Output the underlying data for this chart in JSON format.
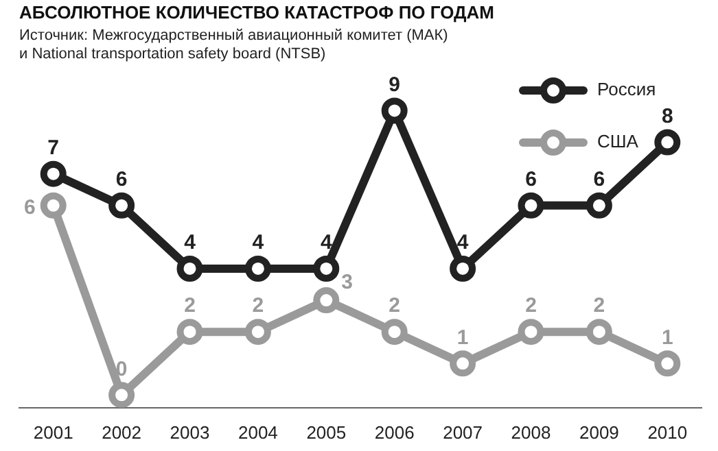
{
  "chart_data": {
    "type": "line",
    "title": "АБСОЛЮТНОЕ КОЛИЧЕСТВО КАТАСТРОФ ПО ГОДАМ",
    "subtitle": "Источник: Межгосударственный авиационный комитет (МАК)\nи National transportation safety board (NTSB)",
    "categories": [
      "2001",
      "2002",
      "2003",
      "2004",
      "2005",
      "2006",
      "2007",
      "2008",
      "2009",
      "2010"
    ],
    "series": [
      {
        "name": "Россия",
        "color": "#222222",
        "values": [
          7,
          6,
          4,
          4,
          4,
          9,
          4,
          6,
          6,
          8
        ]
      },
      {
        "name": "США",
        "color": "#9a9a9a",
        "values": [
          6,
          0,
          2,
          2,
          3,
          2,
          1,
          2,
          2,
          1
        ]
      }
    ],
    "data_labels": true,
    "legend": "top right",
    "marker": "circle",
    "grid": false
  }
}
